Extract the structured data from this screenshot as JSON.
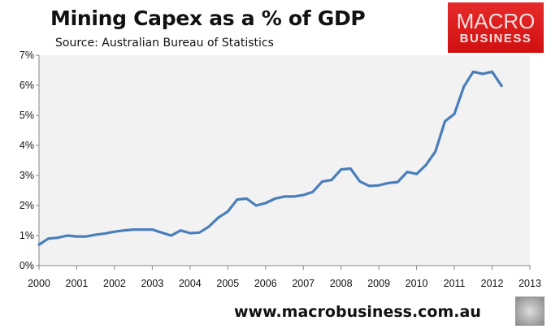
{
  "chart_data": {
    "type": "line",
    "title": "Mining Capex as a % of GDP",
    "subtitle": "Source: Australian Bureau of Statistics",
    "xlabel": "",
    "ylabel": "",
    "xlim": [
      2000,
      2013
    ],
    "ylim": [
      0,
      7
    ],
    "grid": false,
    "x_ticks": [
      "2000",
      "2001",
      "2002",
      "2003",
      "2004",
      "2005",
      "2006",
      "2007",
      "2008",
      "2009",
      "2010",
      "2011",
      "2012",
      "2013"
    ],
    "y_ticks": [
      "0%",
      "1%",
      "2%",
      "3%",
      "4%",
      "5%",
      "6%",
      "7%"
    ],
    "series": [
      {
        "name": "Mining Capex % of GDP",
        "color": "#4a7ebb",
        "x_start": 2000.0,
        "x_step": 0.25,
        "values": [
          0.7,
          0.9,
          0.93,
          1.0,
          0.97,
          0.97,
          1.03,
          1.07,
          1.13,
          1.17,
          1.2,
          1.2,
          1.2,
          1.1,
          1.0,
          1.17,
          1.08,
          1.1,
          1.3,
          1.6,
          1.8,
          2.2,
          2.23,
          2.0,
          2.08,
          2.23,
          2.3,
          2.3,
          2.35,
          2.45,
          2.8,
          2.85,
          3.2,
          3.23,
          2.8,
          2.65,
          2.67,
          2.75,
          2.78,
          3.12,
          3.05,
          3.35,
          3.8,
          4.8,
          5.05,
          5.95,
          6.45,
          6.38,
          6.45,
          5.98
        ]
      }
    ]
  },
  "logo": {
    "line1": "MACRO",
    "line2": "BUSINESS"
  },
  "footer": "www.macrobusiness.com.au"
}
